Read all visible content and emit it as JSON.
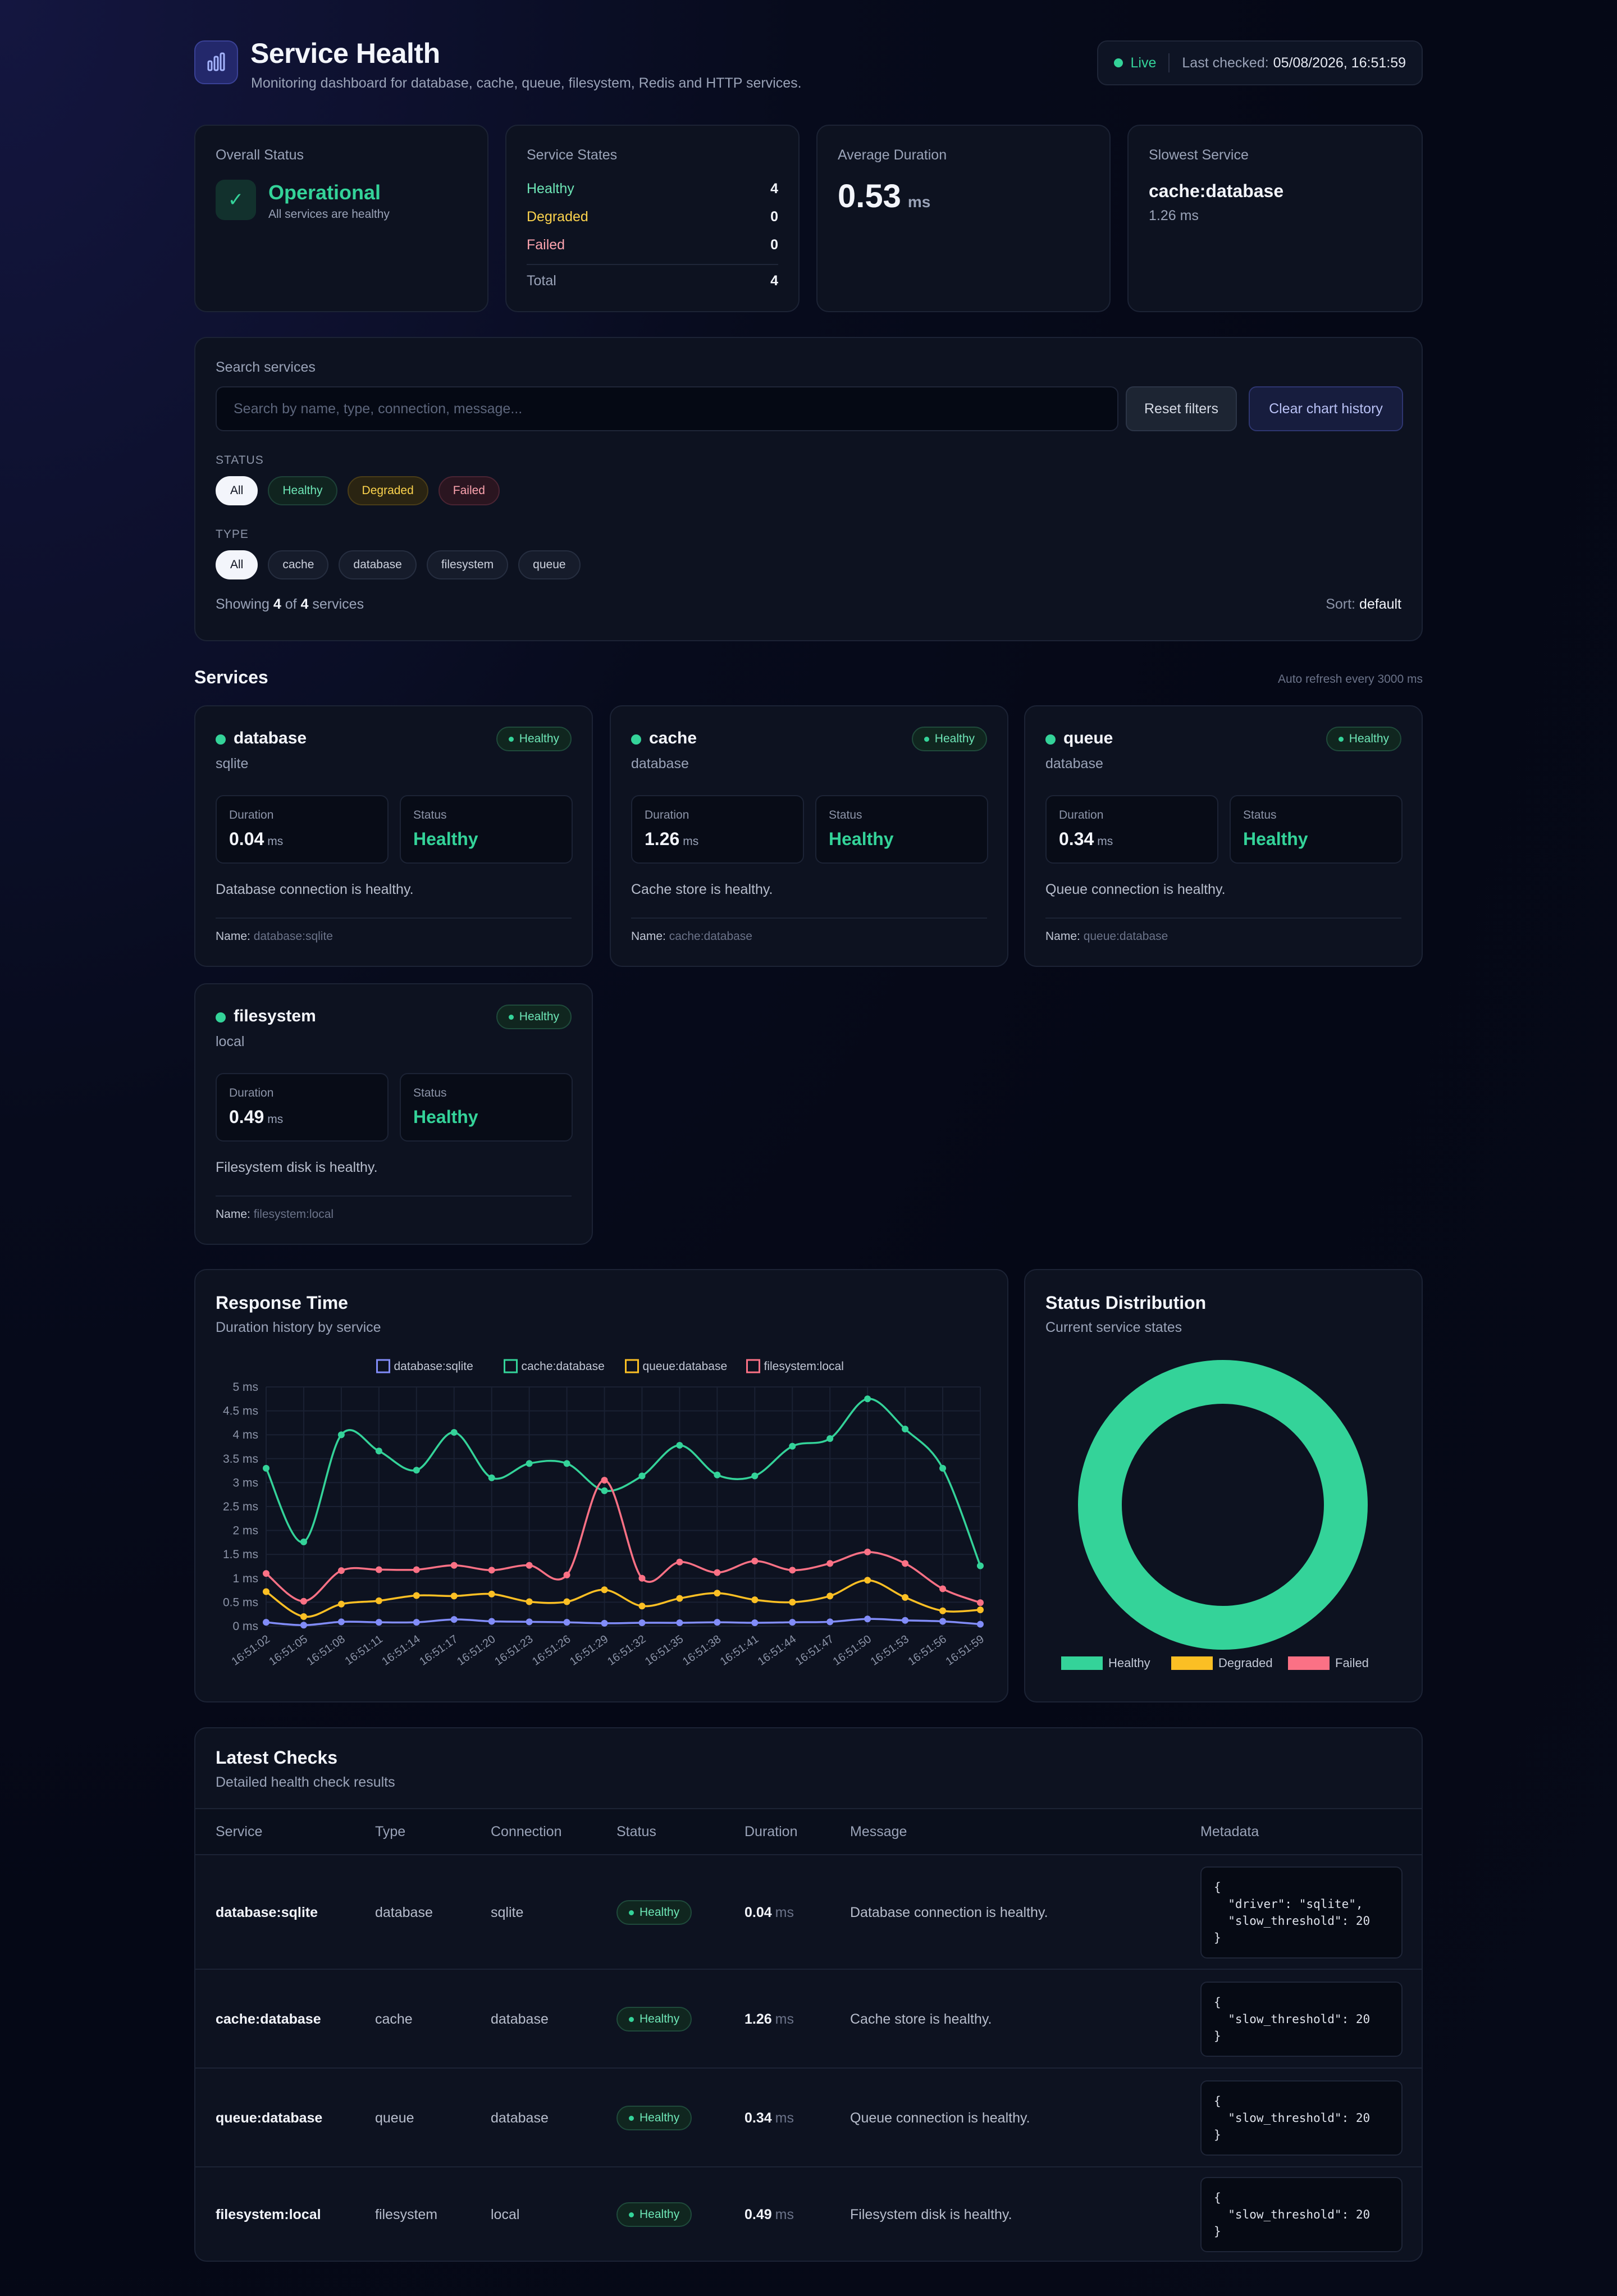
{
  "header": {
    "title": "Service Health",
    "subtitle": "Monitoring dashboard for database, cache, queue, filesystem, Redis and HTTP services.",
    "live_label": "Live",
    "last_checked_label": "Last checked:",
    "last_checked_value": "05/08/2026, 16:51:59",
    "logo_icon": "bar-chart-icon"
  },
  "stats": {
    "overall": {
      "label": "Overall Status",
      "value": "Operational",
      "sub": "All services are healthy",
      "icon": "check-icon"
    },
    "states": {
      "label": "Service States",
      "rows": [
        {
          "label": "Healthy",
          "value": "4",
          "color": "#6ee7b7"
        },
        {
          "label": "Degraded",
          "value": "0",
          "color": "#fcd34d"
        },
        {
          "label": "Failed",
          "value": "0",
          "color": "#fda4af"
        }
      ],
      "total_label": "Total",
      "total_value": "4"
    },
    "avg": {
      "label": "Average Duration",
      "value": "0.53",
      "unit": "ms"
    },
    "slowest": {
      "label": "Slowest Service",
      "value": "cache:database",
      "sub": "1.26 ms"
    }
  },
  "filters": {
    "search_label": "Search services",
    "search_placeholder": "Search by name, type, connection, message...",
    "search_value": "",
    "reset_label": "Reset filters",
    "clear_label": "Clear chart history",
    "status_caption": "STATUS",
    "status_chips": [
      "All",
      "Healthy",
      "Degraded",
      "Failed"
    ],
    "type_caption": "TYPE",
    "type_chips": [
      "All",
      "cache",
      "database",
      "filesystem",
      "queue"
    ],
    "showing_prefix": "Showing",
    "showing_count": "4",
    "showing_of": "of",
    "showing_total": "4",
    "showing_suffix": "services",
    "sort_label": "Sort:",
    "sort_value": "default"
  },
  "services_section": {
    "title": "Services",
    "refresh_note": "Auto refresh every 3000 ms",
    "duration_label": "Duration",
    "status_label": "Status",
    "name_label": "Name:",
    "cards": [
      {
        "name": "database",
        "type": "sqlite",
        "badge": "Healthy",
        "duration": "0.04",
        "unit": "ms",
        "status": "Healthy",
        "message": "Database connection is healthy.",
        "full_name": "database:sqlite"
      },
      {
        "name": "cache",
        "type": "database",
        "badge": "Healthy",
        "duration": "1.26",
        "unit": "ms",
        "status": "Healthy",
        "message": "Cache store is healthy.",
        "full_name": "cache:database"
      },
      {
        "name": "queue",
        "type": "database",
        "badge": "Healthy",
        "duration": "0.34",
        "unit": "ms",
        "status": "Healthy",
        "message": "Queue connection is healthy.",
        "full_name": "queue:database"
      },
      {
        "name": "filesystem",
        "type": "local",
        "badge": "Healthy",
        "duration": "0.49",
        "unit": "ms",
        "status": "Healthy",
        "message": "Filesystem disk is healthy.",
        "full_name": "filesystem:local"
      }
    ]
  },
  "response_chart": {
    "title": "Response Time",
    "subtitle": "Duration history by service"
  },
  "status_chart": {
    "title": "Status Distribution",
    "subtitle": "Current service states"
  },
  "chart_data": [
    {
      "type": "line",
      "ylim": [
        0,
        5
      ],
      "yticks": [
        "0 ms",
        "0.5 ms",
        "1 ms",
        "1.5 ms",
        "2 ms",
        "2.5 ms",
        "3 ms",
        "3.5 ms",
        "4 ms",
        "4.5 ms",
        "5 ms"
      ],
      "x": [
        "16:51:02",
        "16:51:05",
        "16:51:08",
        "16:51:11",
        "16:51:14",
        "16:51:17",
        "16:51:20",
        "16:51:23",
        "16:51:26",
        "16:51:29",
        "16:51:32",
        "16:51:35",
        "16:51:38",
        "16:51:41",
        "16:51:44",
        "16:51:47",
        "16:51:50",
        "16:51:53",
        "16:51:56",
        "16:51:59"
      ],
      "legend_position": "top",
      "grid": true,
      "series": [
        {
          "name": "database:sqlite",
          "color": "#818cf8",
          "values": [
            0.08,
            0.02,
            0.09,
            0.08,
            0.08,
            0.14,
            0.1,
            0.09,
            0.08,
            0.06,
            0.07,
            0.07,
            0.08,
            0.07,
            0.08,
            0.09,
            0.15,
            0.12,
            0.1,
            0.04
          ]
        },
        {
          "name": "cache:database",
          "color": "#34d399",
          "values": [
            3.3,
            1.76,
            4.0,
            3.66,
            3.26,
            4.05,
            3.1,
            3.4,
            3.4,
            2.83,
            3.14,
            3.78,
            3.16,
            3.14,
            3.76,
            3.92,
            4.75,
            4.12,
            3.3,
            1.26
          ]
        },
        {
          "name": "queue:database",
          "color": "#fbbf24",
          "values": [
            0.72,
            0.2,
            0.46,
            0.53,
            0.64,
            0.63,
            0.67,
            0.51,
            0.51,
            0.76,
            0.42,
            0.58,
            0.69,
            0.55,
            0.5,
            0.63,
            0.96,
            0.6,
            0.32,
            0.34
          ]
        },
        {
          "name": "filesystem:local",
          "color": "#fb7185",
          "values": [
            1.1,
            0.52,
            1.16,
            1.18,
            1.18,
            1.27,
            1.17,
            1.27,
            1.07,
            3.05,
            1.0,
            1.34,
            1.12,
            1.36,
            1.17,
            1.31,
            1.55,
            1.31,
            0.78,
            0.49
          ]
        }
      ]
    },
    {
      "type": "pie",
      "categories": [
        "Healthy",
        "Degraded",
        "Failed"
      ],
      "values": [
        4,
        0,
        0
      ],
      "colors": [
        "#34d399",
        "#fbbf24",
        "#fb7185"
      ],
      "legend_position": "bottom"
    }
  ],
  "table": {
    "title": "Latest Checks",
    "subtitle": "Detailed health check results",
    "columns": [
      "Service",
      "Type",
      "Connection",
      "Status",
      "Duration",
      "Message",
      "Metadata"
    ],
    "rows": [
      {
        "service": "database:sqlite",
        "type": "database",
        "connection": "sqlite",
        "status": "Healthy",
        "duration": "0.04",
        "unit": "ms",
        "message": "Database connection is healthy.",
        "metadata": "{\n  \"driver\": \"sqlite\",\n  \"slow_threshold\": 20\n}"
      },
      {
        "service": "cache:database",
        "type": "cache",
        "connection": "database",
        "status": "Healthy",
        "duration": "1.26",
        "unit": "ms",
        "message": "Cache store is healthy.",
        "metadata": "{\n  \"slow_threshold\": 20\n}"
      },
      {
        "service": "queue:database",
        "type": "queue",
        "connection": "database",
        "status": "Healthy",
        "duration": "0.34",
        "unit": "ms",
        "message": "Queue connection is healthy.",
        "metadata": "{\n  \"slow_threshold\": 20\n}"
      },
      {
        "service": "filesystem:local",
        "type": "filesystem",
        "connection": "local",
        "status": "Healthy",
        "duration": "0.49",
        "unit": "ms",
        "message": "Filesystem disk is healthy.",
        "metadata": "{\n  \"slow_threshold\": 20\n}"
      }
    ]
  }
}
